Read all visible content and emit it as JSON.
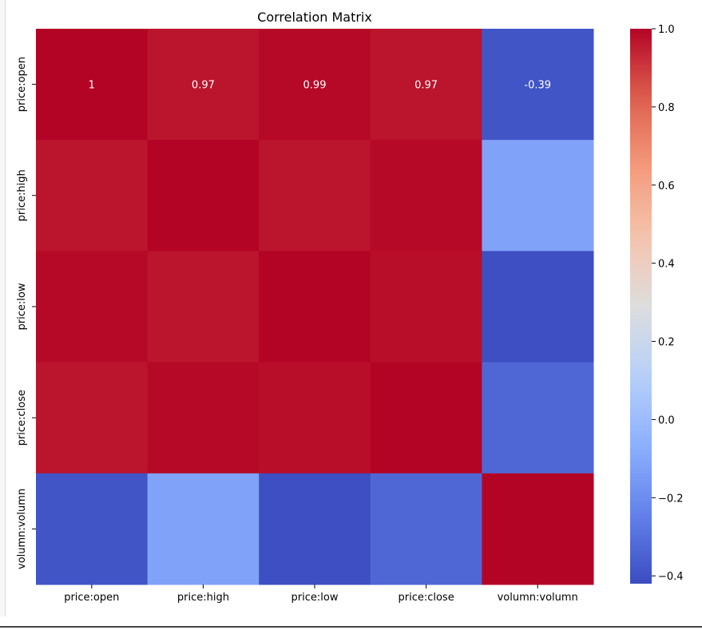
{
  "chart_data": {
    "type": "heatmap",
    "title": "Correlation Matrix",
    "xlabel": "",
    "ylabel": "",
    "rows": [
      "price:open",
      "price:high",
      "price:low",
      "price:close",
      "volumn:volumn"
    ],
    "columns": [
      "price:open",
      "price:high",
      "price:low",
      "price:close",
      "volumn:volumn"
    ],
    "values": [
      [
        1,
        0.97,
        0.99,
        0.97,
        -0.39
      ],
      [
        0.97,
        1,
        0.97,
        0.99,
        -0.12
      ],
      [
        0.99,
        0.97,
        1,
        0.98,
        -0.41
      ],
      [
        0.97,
        0.99,
        0.98,
        1,
        -0.33
      ],
      [
        -0.39,
        -0.12,
        -0.41,
        -0.33,
        1
      ]
    ],
    "annotations": [
      [
        "1",
        "0.97",
        "0.99",
        "0.97",
        "-0.39"
      ],
      [
        "",
        "",
        "",
        "",
        ""
      ],
      [
        "",
        "",
        "",
        "",
        ""
      ],
      [
        "",
        "",
        "",
        "",
        ""
      ],
      [
        "",
        "",
        "",
        "",
        ""
      ]
    ],
    "colormap": "coolwarm",
    "colorbar": {
      "min": -0.42,
      "max": 1.0,
      "ticks": [
        1.0,
        0.8,
        0.6,
        0.4,
        0.2,
        0.0,
        -0.2,
        -0.4
      ],
      "tick_labels": [
        "1.0",
        "0.8",
        "0.6",
        "0.4",
        "0.2",
        "0.0",
        "−0.2",
        "−0.4"
      ]
    },
    "grid": false
  }
}
